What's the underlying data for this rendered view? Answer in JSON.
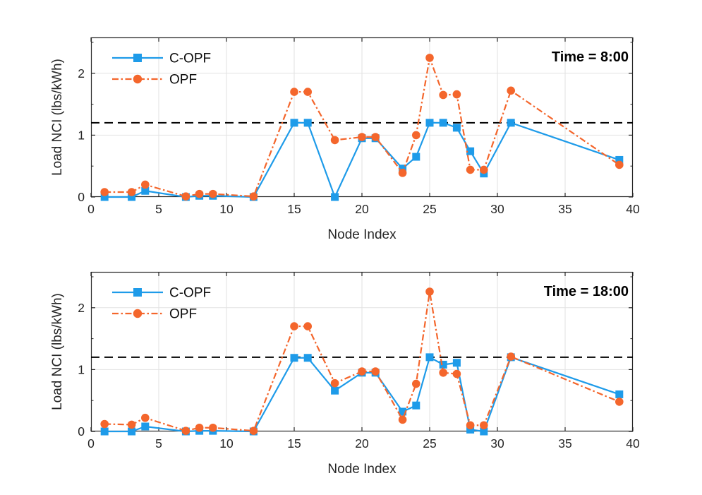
{
  "figure": {
    "background": "#ffffff",
    "axis_color": "#262626",
    "grid_color": "#e2e2e2",
    "tick_label_color": "#262626",
    "text_color": "#000000",
    "threshold_color": "#000000",
    "xticks": [
      0,
      5,
      10,
      15,
      20,
      25,
      30,
      35,
      40
    ],
    "yticks": [
      0,
      1,
      2
    ],
    "y_minor_ticks": [
      0.5,
      1.5,
      2.5
    ],
    "legend": [
      {
        "label": "C-OPF",
        "color": "#1e9be9",
        "marker": "square",
        "line": "solid"
      },
      {
        "label": "OPF",
        "color": "#f4662c",
        "marker": "circle",
        "line": "dash-dot"
      }
    ]
  },
  "chart_data": [
    {
      "type": "line",
      "title": "Time = 8:00",
      "xlabel": "Node Index",
      "ylabel": "Load NCI (lbs/kWh)",
      "xlim": [
        0,
        40
      ],
      "ylim": [
        0,
        2.58
      ],
      "grid": true,
      "legend_position": "top-left",
      "threshold_line": 1.2,
      "x": [
        1,
        3,
        4,
        7,
        8,
        9,
        12,
        15,
        16,
        18,
        20,
        21,
        23,
        24,
        25,
        26,
        27,
        28,
        29,
        31,
        39
      ],
      "series": [
        {
          "name": "C-OPF",
          "values": [
            0.0,
            0.0,
            0.1,
            0.0,
            0.02,
            0.02,
            0.0,
            1.2,
            1.2,
            0.0,
            0.95,
            0.95,
            0.46,
            0.65,
            1.2,
            1.2,
            1.12,
            0.74,
            0.38,
            1.2,
            0.6
          ]
        },
        {
          "name": "OPF",
          "values": [
            0.08,
            0.08,
            0.2,
            0.01,
            0.05,
            0.05,
            0.01,
            1.7,
            1.7,
            0.92,
            0.97,
            0.97,
            0.39,
            1.0,
            2.25,
            1.65,
            1.66,
            0.44,
            0.44,
            1.72,
            0.52
          ]
        }
      ]
    },
    {
      "type": "line",
      "title": "Time = 18:00",
      "xlabel": "Node Index",
      "ylabel": "Load NCI (lbs/kWh)",
      "xlim": [
        0,
        40
      ],
      "ylim": [
        0,
        2.58
      ],
      "grid": true,
      "legend_position": "top-left",
      "threshold_line": 1.2,
      "x": [
        1,
        3,
        4,
        7,
        8,
        9,
        12,
        15,
        16,
        18,
        20,
        21,
        23,
        24,
        25,
        26,
        27,
        28,
        29,
        31,
        39
      ],
      "series": [
        {
          "name": "C-OPF",
          "values": [
            0.0,
            0.0,
            0.08,
            0.0,
            0.01,
            0.01,
            0.0,
            1.19,
            1.19,
            0.66,
            0.95,
            0.95,
            0.32,
            0.42,
            1.2,
            1.08,
            1.11,
            0.03,
            0.0,
            1.2,
            0.6
          ]
        },
        {
          "name": "OPF",
          "values": [
            0.12,
            0.11,
            0.22,
            0.01,
            0.06,
            0.06,
            0.01,
            1.7,
            1.7,
            0.78,
            0.97,
            0.97,
            0.19,
            0.77,
            2.26,
            0.95,
            0.93,
            0.1,
            0.1,
            1.21,
            0.48
          ]
        }
      ]
    }
  ]
}
